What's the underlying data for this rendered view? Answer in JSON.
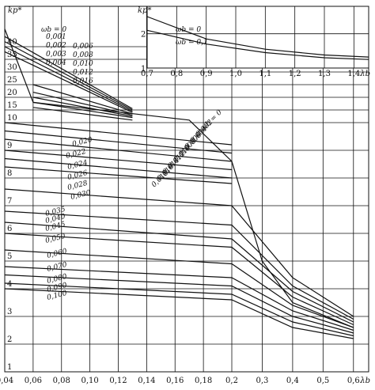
{
  "chart_data": [
    {
      "type": "line",
      "title": "",
      "xlabel": "λb",
      "ylabel": "kp*",
      "xlim": [
        0.04,
        0.65
      ],
      "ylim": [
        1,
        40
      ],
      "scale": "segmented: x linear 0.04–0.20 then 0.2–0.65; y linear 1–10 then 10–40",
      "x_ticks": [
        "0,04",
        "0,06",
        "0,08",
        "0,10",
        "0,12",
        "0,14",
        "0,16",
        "0,18",
        "0,2",
        "0,3",
        "0,4",
        "0,5",
        "0,6"
      ],
      "y_ticks": [
        "1",
        "2",
        "3",
        "4",
        "5",
        "6",
        "7",
        "8",
        "9",
        "10",
        "15",
        "20",
        "25",
        "30",
        "35",
        "40"
      ],
      "grid": true,
      "legend": "none",
      "series": [
        {
          "name": "0,100",
          "x": [
            0.04,
            0.2,
            0.4,
            0.6
          ],
          "y": [
            4.0,
            3.6,
            2.6,
            2.2
          ]
        },
        {
          "name": "0,090",
          "x": [
            0.04,
            0.2,
            0.4,
            0.6
          ],
          "y": [
            4.2,
            3.8,
            2.8,
            2.3
          ]
        },
        {
          "name": "0,080",
          "x": [
            0.04,
            0.2,
            0.4,
            0.6
          ],
          "y": [
            4.5,
            4.1,
            3.0,
            2.4
          ]
        },
        {
          "name": "0,070",
          "x": [
            0.04,
            0.2,
            0.4,
            0.6
          ],
          "y": [
            4.8,
            4.4,
            3.2,
            2.5
          ]
        },
        {
          "name": "0,060",
          "x": [
            0.04,
            0.2,
            0.4,
            0.6
          ],
          "y": [
            5.4,
            4.9,
            3.4,
            2.6
          ]
        },
        {
          "name": "0,050",
          "x": [
            0.04,
            0.2,
            0.4,
            0.6
          ],
          "y": [
            6.0,
            5.5,
            3.7,
            2.7
          ]
        },
        {
          "name": "0,045",
          "x": [
            0.04,
            0.2,
            0.4,
            0.6
          ],
          "y": [
            6.4,
            5.8,
            3.9,
            2.8
          ]
        },
        {
          "name": "0,040",
          "x": [
            0.04,
            0.2,
            0.4,
            0.6
          ],
          "y": [
            6.8,
            6.3,
            4.1,
            2.9
          ]
        },
        {
          "name": "0,035",
          "x": [
            0.04,
            0.2,
            0.4,
            0.6
          ],
          "y": [
            7.6,
            7.0,
            4.4,
            3.0
          ]
        },
        {
          "name": "0,030",
          "x": [
            0.04,
            0.2
          ],
          "y": [
            8.4,
            7.8
          ]
        },
        {
          "name": "0,028",
          "x": [
            0.04,
            0.2
          ],
          "y": [
            8.7,
            8.0
          ]
        },
        {
          "name": "0,026",
          "x": [
            0.04,
            0.2
          ],
          "y": [
            9.0,
            8.3
          ]
        },
        {
          "name": "0,024",
          "x": [
            0.04,
            0.2
          ],
          "y": [
            9.4,
            8.6
          ]
        },
        {
          "name": "0,022",
          "x": [
            0.04,
            0.2
          ],
          "y": [
            9.7,
            8.9
          ]
        },
        {
          "name": "0,020",
          "x": [
            0.04,
            0.2
          ],
          "y": [
            10.0,
            9.2
          ]
        },
        {
          "name": "0,016",
          "x": [
            0.06,
            0.13
          ],
          "y": [
            16,
            11
          ]
        },
        {
          "name": "0,012",
          "x": [
            0.06,
            0.13
          ],
          "y": [
            18,
            12
          ]
        },
        {
          "name": "0,010",
          "x": [
            0.06,
            0.13
          ],
          "y": [
            20,
            12.5
          ]
        },
        {
          "name": "0,008",
          "x": [
            0.06,
            0.13
          ],
          "y": [
            22,
            13
          ]
        },
        {
          "name": "0,006",
          "x": [
            0.06,
            0.13
          ],
          "y": [
            25,
            13.5
          ]
        },
        {
          "name": "0,004",
          "x": [
            0.04,
            0.13
          ],
          "y": [
            38,
            14
          ]
        },
        {
          "name": "0,003",
          "x": [
            0.04,
            0.13
          ],
          "y": [
            40,
            14.5
          ]
        },
        {
          "name": "0,002",
          "x": [
            0.04,
            0.13
          ],
          "y": [
            42,
            15
          ]
        },
        {
          "name": "0,001",
          "x": [
            0.04,
            0.13
          ],
          "y": [
            44,
            15.5
          ]
        },
        {
          "name": "0",
          "x": [
            0.04,
            0.06,
            0.17,
            0.2,
            0.3,
            0.4,
            0.6
          ],
          "y": [
            47,
            18,
            11,
            8.6,
            5.0,
            3.5,
            2.6
          ]
        }
      ],
      "labels": {
        "wb_eq": "ωb = 0",
        "w_set1": [
          "0,001",
          "0,002",
          "0,003",
          "0,004",
          "0,006",
          "0,008",
          "0,010",
          "0,012",
          "0,016"
        ],
        "w_set2": [
          "0,020",
          "0,022",
          "0,024",
          "0,026",
          "0,028",
          "0,030",
          "0,035",
          "0,040",
          "0,045",
          "0,050",
          "0,060",
          "0,070",
          "0,080",
          "0,090",
          "0,100"
        ],
        "w_set3": [
          "ωb = 0",
          "0,002",
          "0,004",
          "0,006",
          "0,008",
          "0,010",
          "0,012",
          "0,014",
          "0,016",
          "0,018"
        ]
      }
    },
    {
      "type": "line",
      "title": "",
      "xlabel": "λb",
      "ylabel": "kp*",
      "xlim": [
        0.7,
        1.45
      ],
      "ylim": [
        1,
        2.8
      ],
      "x_ticks": [
        "0,7",
        "0,8",
        "0,9",
        "1,0",
        "1,1",
        "1,2",
        "1,3",
        "1,4"
      ],
      "y_ticks": [
        "1",
        "2"
      ],
      "grid": true,
      "legend": "none",
      "series": [
        {
          "name": "ωb = 0",
          "x": [
            0.7,
            0.9,
            1.1,
            1.3,
            1.45
          ],
          "y": [
            2.5,
            1.85,
            1.55,
            1.38,
            1.32
          ]
        },
        {
          "name": "ωb = 0,1",
          "x": [
            0.7,
            0.9,
            1.1,
            1.3,
            1.45
          ],
          "y": [
            2.1,
            1.7,
            1.45,
            1.3,
            1.25
          ]
        }
      ]
    }
  ]
}
